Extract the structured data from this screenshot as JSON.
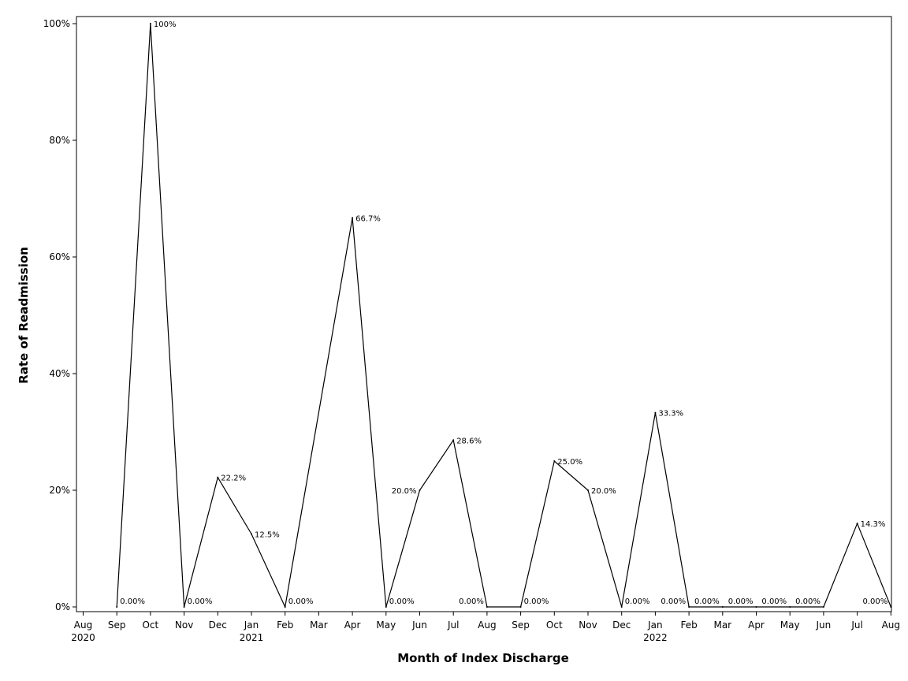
{
  "chart_data": {
    "type": "line",
    "xlabel": "Month of Index Discharge",
    "ylabel": "Rate of Readmission",
    "ylim": [
      0,
      100
    ],
    "y_ticks": [
      "0%",
      "20%",
      "40%",
      "60%",
      "80%",
      "100%"
    ],
    "x_ticks": [
      {
        "month": "Aug",
        "year": "2020"
      },
      {
        "month": "Sep",
        "year": ""
      },
      {
        "month": "Oct",
        "year": ""
      },
      {
        "month": "Nov",
        "year": ""
      },
      {
        "month": "Dec",
        "year": ""
      },
      {
        "month": "Jan",
        "year": "2021"
      },
      {
        "month": "Feb",
        "year": ""
      },
      {
        "month": "Mar",
        "year": ""
      },
      {
        "month": "Apr",
        "year": ""
      },
      {
        "month": "May",
        "year": ""
      },
      {
        "month": "Jun",
        "year": ""
      },
      {
        "month": "Jul",
        "year": ""
      },
      {
        "month": "Aug",
        "year": ""
      },
      {
        "month": "Sep",
        "year": ""
      },
      {
        "month": "Oct",
        "year": ""
      },
      {
        "month": "Nov",
        "year": ""
      },
      {
        "month": "Dec",
        "year": ""
      },
      {
        "month": "Jan",
        "year": "2022"
      },
      {
        "month": "Feb",
        "year": ""
      },
      {
        "month": "Mar",
        "year": ""
      },
      {
        "month": "Apr",
        "year": ""
      },
      {
        "month": "May",
        "year": ""
      },
      {
        "month": "Jun",
        "year": ""
      },
      {
        "month": "Jul",
        "year": ""
      },
      {
        "month": "Aug",
        "year": ""
      }
    ],
    "points": [
      {
        "x": "2020-09",
        "y": 0,
        "label": "0.00%",
        "label_pos": "right"
      },
      {
        "x": "2020-10",
        "y": 100,
        "label": "100%",
        "label_pos": "right"
      },
      {
        "x": "2020-11",
        "y": 0,
        "label": "0.00%",
        "label_pos": "right"
      },
      {
        "x": "2020-12",
        "y": 22.2,
        "label": "22.2%",
        "label_pos": "right"
      },
      {
        "x": "2021-01",
        "y": 12.5,
        "label": "12.5%",
        "label_pos": "right"
      },
      {
        "x": "2021-02",
        "y": 0,
        "label": "0.00%",
        "label_pos": "right"
      },
      {
        "x": "2021-04",
        "y": 66.7,
        "label": "66.7%",
        "label_pos": "right"
      },
      {
        "x": "2021-05",
        "y": 0,
        "label": "0.00%",
        "label_pos": "right"
      },
      {
        "x": "2021-06",
        "y": 20.0,
        "label": "20.0%",
        "label_pos": "left"
      },
      {
        "x": "2021-07",
        "y": 28.6,
        "label": "28.6%",
        "label_pos": "right"
      },
      {
        "x": "2021-08",
        "y": 0,
        "label": "0.00%",
        "label_pos": "left"
      },
      {
        "x": "2021-09",
        "y": 0,
        "label": "0.00%",
        "label_pos": "right"
      },
      {
        "x": "2021-10",
        "y": 25.0,
        "label": "25.0%",
        "label_pos": "right"
      },
      {
        "x": "2021-11",
        "y": 20.0,
        "label": "20.0%",
        "label_pos": "right"
      },
      {
        "x": "2021-12",
        "y": 0,
        "label": "0.00%",
        "label_pos": "right"
      },
      {
        "x": "2022-01",
        "y": 33.3,
        "label": "33.3%",
        "label_pos": "right"
      },
      {
        "x": "2022-02",
        "y": 0,
        "label": "0.00%",
        "label_pos": "left"
      },
      {
        "x": "2022-03",
        "y": 0,
        "label": "0.00%",
        "label_pos": "left"
      },
      {
        "x": "2022-04",
        "y": 0,
        "label": "0.00%",
        "label_pos": "left"
      },
      {
        "x": "2022-05",
        "y": 0,
        "label": "0.00%",
        "label_pos": "left"
      },
      {
        "x": "2022-06",
        "y": 0,
        "label": "0.00%",
        "label_pos": "left"
      },
      {
        "x": "2022-07",
        "y": 14.3,
        "label": "14.3%",
        "label_pos": "right"
      },
      {
        "x": "2022-08",
        "y": 0,
        "label": "0.00%",
        "label_pos": "left"
      }
    ],
    "grid": false,
    "legend": "none",
    "line_color": "#000000"
  }
}
